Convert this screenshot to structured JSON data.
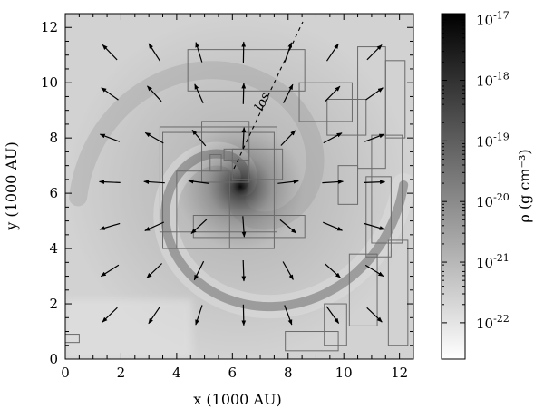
{
  "chart_data": {
    "type": "heatmap",
    "xlabel": "x (1000 AU)",
    "ylabel": "y (1000 AU)",
    "xlim": [
      0,
      12.5
    ],
    "ylim": [
      0,
      12.5
    ],
    "xticks": [
      0,
      2,
      4,
      6,
      8,
      10,
      12
    ],
    "yticks": [
      0,
      2,
      4,
      6,
      8,
      10,
      12
    ],
    "annotation": "los",
    "colorbar": {
      "label": "ρ (g cm⁻³)",
      "scale": "log",
      "range_exp": [
        -22.6,
        -16.9
      ],
      "tick_base": "10",
      "tick_exponents": [
        "-17",
        "-18",
        "-19",
        "-20",
        "-21",
        "-22"
      ],
      "colormap": [
        "#ffffff",
        "#000000"
      ]
    },
    "density_center": [
      6.3,
      6.2
    ],
    "arrow_grid": [
      1.6,
      3.2,
      4.8,
      6.4,
      8.0,
      9.6,
      11.1
    ],
    "amr_boxes": [
      [
        4.6,
        8.6,
        4.4,
        5.2
      ],
      [
        4.9,
        6.6,
        6.4,
        8.6
      ],
      [
        4.0,
        5.9,
        4.0,
        6.8
      ],
      [
        3.4,
        7.6,
        4.6,
        8.4
      ],
      [
        3.5,
        7.5,
        4.0,
        8.2
      ],
      [
        5.7,
        6.6,
        7.2,
        7.6
      ],
      [
        4.4,
        8.6,
        9.7,
        11.2
      ],
      [
        6.0,
        7.8,
        6.5,
        7.6
      ],
      [
        5.2,
        5.6,
        6.8,
        7.4
      ],
      [
        9.4,
        10.8,
        8.1,
        9.4
      ],
      [
        8.4,
        10.3,
        8.6,
        10.0
      ],
      [
        10.5,
        11.5,
        6.9,
        11.3
      ],
      [
        9.8,
        10.5,
        5.6,
        7.0
      ],
      [
        10.8,
        11.7,
        3.7,
        6.6
      ],
      [
        10.2,
        11.2,
        1.2,
        3.8
      ],
      [
        9.3,
        10.1,
        0.5,
        2.0
      ],
      [
        7.9,
        9.8,
        0.3,
        1.0
      ],
      [
        11.6,
        12.3,
        0.5,
        4.3
      ],
      [
        11.0,
        12.1,
        4.2,
        8.1
      ],
      [
        11.5,
        12.2,
        8.0,
        10.8
      ],
      [
        0.0,
        0.5,
        0.6,
        0.9
      ]
    ]
  }
}
